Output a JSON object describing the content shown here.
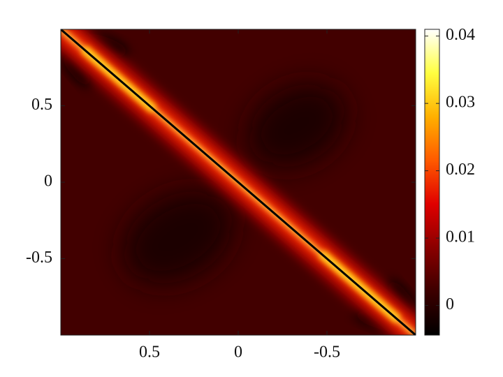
{
  "chart_data": {
    "type": "heatmap",
    "xlim": [
      1,
      -1
    ],
    "xticks": [
      0.5,
      0,
      -0.5
    ],
    "ylim": [
      -1,
      1
    ],
    "yticks": [
      -0.5,
      0,
      0.5
    ],
    "colorbar": {
      "clim": [
        -0.0044,
        0.041
      ],
      "ticks": [
        0,
        0.01,
        0.02,
        0.03,
        0.04
      ],
      "colormap": [
        "#000000",
        "#3c0000",
        "#8a0000",
        "#e00000",
        "#ff5a00",
        "#ffb000",
        "#ffff40",
        "#ffffff"
      ]
    }
  }
}
